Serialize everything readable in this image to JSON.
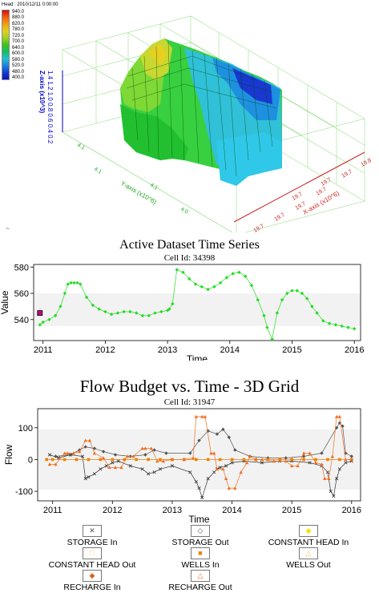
{
  "surface": {
    "header": "Head : 2010/12/11 0:00:00",
    "legend_values": [
      "940.0",
      "880.0",
      "820.0",
      "780.0",
      "720.0",
      "700.0",
      "640.0",
      "600.0",
      "580.0",
      "520.0",
      "480.0",
      "400.0"
    ],
    "z_axis_label": "Z-axis (x10^3)",
    "z_ticks": "1.4 1.2 1.0 0.8 0.6 0.4 0.2",
    "y_axis_label": "Y-axis (x10^6)",
    "y_ticks": [
      "4.1",
      "4.1",
      "4.1",
      "4.0"
    ],
    "x_axis_label": "X-axis (x10^6)",
    "x_ticks": [
      "19.7",
      "19.7",
      "19.7",
      "19.7",
      "19.7",
      "19.7",
      "19.7",
      "19.8"
    ],
    "tilde": "~"
  },
  "chart_data": [
    {
      "type": "scatter",
      "title": "Active Dataset Time Series",
      "subtitle": "Cell Id: 34398",
      "xlabel": "Time",
      "ylabel": "Value",
      "xlim": [
        2010.85,
        2016.1
      ],
      "ylim": [
        524,
        582
      ],
      "yticks": [
        540,
        560,
        580
      ],
      "xticks": [
        2011,
        2012,
        2013,
        2014,
        2015,
        2016
      ],
      "series": [
        {
          "color": "#22dd22",
          "marker": "diamond",
          "x": [
            2010.95,
            2011.0,
            2011.1,
            2011.2,
            2011.28,
            2011.35,
            2011.4,
            2011.45,
            2011.5,
            2011.55,
            2011.6,
            2011.7,
            2011.8,
            2011.9,
            2012.0,
            2012.1,
            2012.2,
            2012.3,
            2012.4,
            2012.5,
            2012.6,
            2012.7,
            2012.8,
            2012.9,
            2013.0,
            2013.03,
            2013.08,
            2013.15,
            2013.25,
            2013.35,
            2013.45,
            2013.55,
            2013.65,
            2013.75,
            2013.85,
            2013.95,
            2014.05,
            2014.15,
            2014.25,
            2014.35,
            2014.45,
            2014.55,
            2014.6,
            2014.68,
            2014.76,
            2014.84,
            2014.92,
            2015.0,
            2015.08,
            2015.16,
            2015.24,
            2015.32,
            2015.4,
            2015.5,
            2015.6,
            2015.7,
            2015.8,
            2015.9,
            2016.0
          ],
          "y": [
            536,
            538,
            540,
            543,
            550,
            560,
            567,
            568,
            568,
            568,
            567,
            557,
            551,
            548,
            546,
            544,
            545,
            546,
            546,
            545,
            543,
            543,
            545,
            546,
            547,
            548,
            552,
            578,
            576,
            571,
            567,
            565,
            563,
            565,
            568,
            572,
            575,
            576,
            573,
            566,
            555,
            543,
            534,
            525,
            545,
            555,
            560,
            562,
            562,
            560,
            556,
            550,
            545,
            539,
            537,
            536,
            535,
            534,
            533
          ]
        }
      ],
      "highlight": {
        "x": 2010.95,
        "y": 545,
        "color": "#c0008a"
      }
    },
    {
      "type": "scatter",
      "title": "Flow Budget vs. Time - 3D Grid",
      "subtitle": "Cell Id: 31947",
      "xlabel": "Time",
      "ylabel": "Flow",
      "xlim": [
        2010.75,
        2016.15
      ],
      "ylim": [
        -130,
        160
      ],
      "yticks": [
        -100,
        0,
        100
      ],
      "xticks": [
        2011,
        2012,
        2013,
        2014,
        2015,
        2016
      ],
      "series": [
        {
          "name": "STORAGE In",
          "color": "#333333",
          "marker": "x",
          "x": [
            2010.95,
            2011.1,
            2011.3,
            2011.5,
            2011.55,
            2011.6,
            2011.7,
            2011.8,
            2011.9,
            2012.0,
            2012.1,
            2012.3,
            2012.5,
            2012.6,
            2012.7,
            2012.8,
            2013.0,
            2013.3,
            2013.4,
            2013.45,
            2013.5,
            2013.6,
            2013.7,
            2013.75,
            2013.8,
            2013.9,
            2014.0,
            2014.2,
            2014.5,
            2014.8,
            2015.0,
            2015.3,
            2015.5,
            2015.6,
            2015.65,
            2015.7,
            2015.75,
            2015.8,
            2015.9,
            2016.0
          ],
          "y": [
            15,
            5,
            15,
            10,
            -60,
            -55,
            -45,
            -30,
            -20,
            -10,
            -5,
            -20,
            -30,
            -45,
            -40,
            -30,
            -20,
            -40,
            -70,
            -90,
            -120,
            -60,
            -40,
            -30,
            -25,
            -20,
            -10,
            -5,
            -10,
            -5,
            -5,
            -10,
            -20,
            -40,
            -100,
            -115,
            -60,
            -30,
            -10,
            -5
          ]
        },
        {
          "name": "STORAGE Out",
          "color": "#555555",
          "marker": "diamond",
          "x": [
            2011.05,
            2011.3,
            2011.45,
            2011.55,
            2011.7,
            2011.85,
            2012.05,
            2012.3,
            2012.55,
            2012.7,
            2012.9,
            2013.3,
            2013.45,
            2013.6,
            2013.75,
            2013.85,
            2013.95,
            2014.05,
            2014.3,
            2014.6,
            2014.9,
            2015.2,
            2015.5,
            2015.75,
            2015.8,
            2015.85,
            2015.9,
            2016.0
          ],
          "y": [
            10,
            15,
            30,
            40,
            35,
            25,
            15,
            10,
            15,
            30,
            20,
            20,
            60,
            90,
            80,
            95,
            70,
            30,
            10,
            5,
            5,
            10,
            20,
            100,
            115,
            105,
            20,
            10
          ]
        },
        {
          "name": "CONSTANT HEAD In",
          "color": "#f8e000",
          "marker": "diamond",
          "x": [],
          "y": []
        },
        {
          "name": "CONSTANT HEAD Out",
          "color": "#f0d870",
          "marker": "square",
          "x": [],
          "y": []
        },
        {
          "name": "WELLS In",
          "color": "#f08000",
          "marker": "square",
          "x": [
            2010.9,
            2011.0,
            2011.2,
            2011.4,
            2011.6,
            2011.8,
            2012.0,
            2012.2,
            2012.4,
            2012.6,
            2012.8,
            2013.0,
            2013.2,
            2013.4,
            2013.6,
            2013.8,
            2014.0,
            2014.2,
            2014.4,
            2014.6,
            2014.8,
            2015.0,
            2015.2,
            2015.4,
            2015.6,
            2015.8,
            2016.0
          ],
          "y": [
            0,
            0,
            0,
            0,
            0,
            0,
            0,
            0,
            0,
            0,
            0,
            0,
            0,
            0,
            0,
            0,
            0,
            0,
            0,
            0,
            0,
            0,
            0,
            0,
            0,
            0,
            0
          ]
        },
        {
          "name": "WELLS Out",
          "color": "#f0c060",
          "marker": "triangle",
          "x": [],
          "y": []
        },
        {
          "name": "RECHARGE In",
          "color": "#e06010",
          "marker": "diamond",
          "x": [],
          "y": []
        },
        {
          "name": "RECHARGE Out",
          "color": "#f07020",
          "marker": "triangle",
          "x": [
            2010.95,
            2011.05,
            2011.2,
            2011.25,
            2011.35,
            2011.45,
            2011.55,
            2011.62,
            2011.7,
            2011.85,
            2011.95,
            2012.05,
            2012.15,
            2012.25,
            2012.35,
            2012.5,
            2012.55,
            2012.65,
            2012.75,
            2012.85,
            2013.0,
            2013.2,
            2013.35,
            2013.4,
            2013.5,
            2013.55,
            2013.65,
            2013.7,
            2013.75,
            2013.85,
            2013.9,
            2013.95,
            2014.05,
            2014.15,
            2014.25,
            2014.3,
            2014.4,
            2014.5,
            2014.7,
            2014.9,
            2015.0,
            2015.1,
            2015.2,
            2015.3,
            2015.4,
            2015.5,
            2015.55,
            2015.62,
            2015.68,
            2015.75,
            2015.8,
            2015.9,
            2016.0
          ],
          "y": [
            -15,
            -15,
            20,
            20,
            20,
            25,
            60,
            60,
            20,
            5,
            -25,
            -25,
            -25,
            10,
            10,
            35,
            35,
            35,
            -5,
            -5,
            0,
            0,
            5,
            135,
            135,
            135,
            20,
            20,
            -30,
            -30,
            -60,
            -90,
            -90,
            -40,
            -10,
            10,
            0,
            0,
            -5,
            -5,
            -20,
            -20,
            20,
            20,
            -10,
            -15,
            -60,
            -60,
            10,
            135,
            135,
            0,
            0
          ]
        }
      ]
    }
  ]
}
